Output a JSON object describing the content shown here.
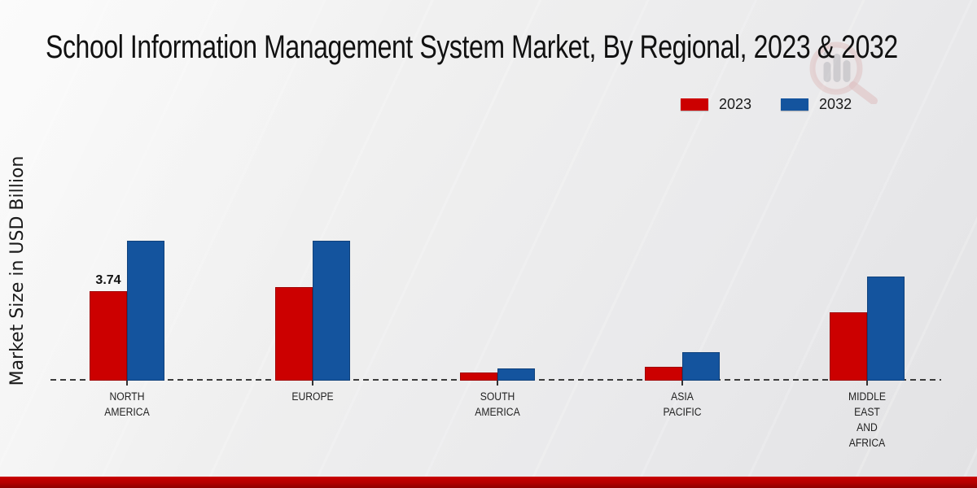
{
  "page": {
    "title": "School Information Management System Market, By Regional, 2023 & 2032"
  },
  "legend": {
    "items": [
      {
        "label": "2023",
        "color": "#cc0000"
      },
      {
        "label": "2032",
        "color": "#14549e"
      }
    ]
  },
  "watermark": {
    "name": "market-research-magnifier-logo"
  },
  "chart_data": {
    "type": "bar",
    "title": "School Information Management System Market, By Regional, 2023 & 2032",
    "xlabel": "",
    "ylabel": "Market Size in USD Billion",
    "unit": "USD Billion",
    "categories": [
      "NORTH AMERICA",
      "EUROPE",
      "SOUTH AMERICA",
      "ASIA PACIFIC",
      "MIDDLE EAST AND AFRICA"
    ],
    "category_label_lines": [
      [
        "NORTH",
        "AMERICA"
      ],
      [
        "EUROPE"
      ],
      [
        "SOUTH",
        "AMERICA"
      ],
      [
        "ASIA",
        "PACIFIC"
      ],
      [
        "MIDDLE",
        "EAST",
        "AND",
        "AFRICA"
      ]
    ],
    "series": [
      {
        "name": "2023",
        "color": "#cc0000",
        "values": [
          3.74,
          3.91,
          0.35,
          0.58,
          2.86
        ]
      },
      {
        "name": "2032",
        "color": "#14549e",
        "values": [
          5.85,
          5.85,
          0.52,
          1.19,
          4.35
        ]
      }
    ],
    "annotations": [
      {
        "series": "2023",
        "category": "NORTH AMERICA",
        "text": "3.74"
      }
    ],
    "ylim": [
      0,
      6.5
    ],
    "grid": false,
    "y_axis_visible": false,
    "baseline_style": "dashed",
    "legend_position": "top-right"
  }
}
